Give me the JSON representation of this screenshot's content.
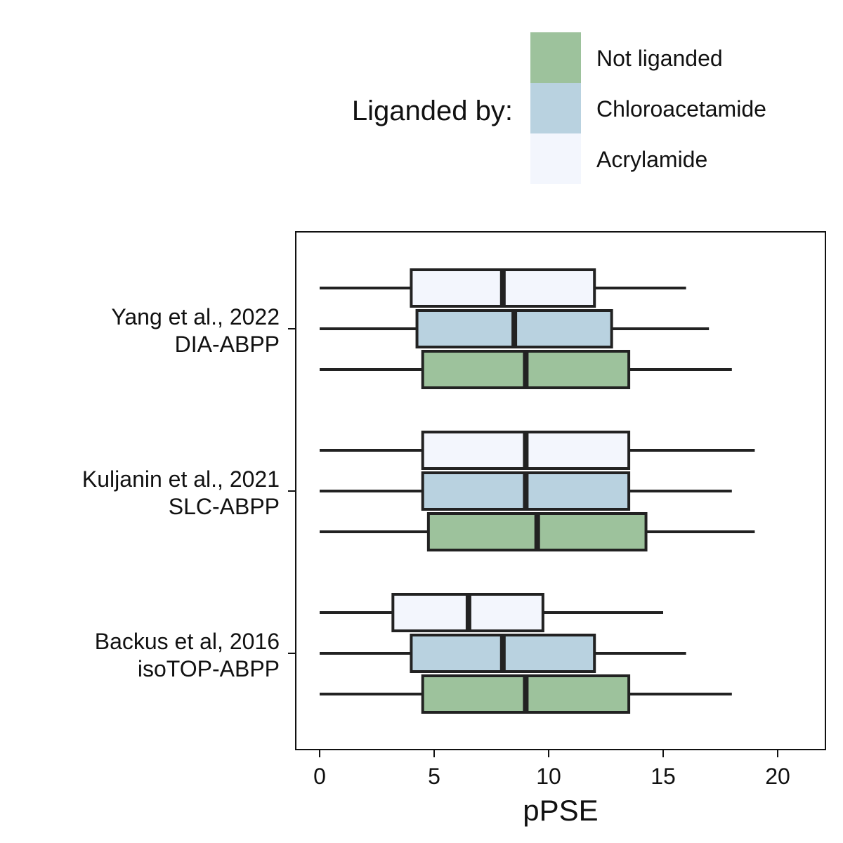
{
  "chart_data": {
    "type": "box",
    "orientation": "horizontal",
    "xlabel": "pPSE",
    "xlim": [
      -1,
      22
    ],
    "xticks": [
      0,
      5,
      10,
      15,
      20
    ],
    "grid": false,
    "legend": {
      "title": "Liganded by:",
      "position": "top",
      "entries": [
        {
          "label": "Not liganded",
          "color": "#9dc29c"
        },
        {
          "label": "Chloroacetamide",
          "color": "#b9d2e0"
        },
        {
          "label": "Acrylamide",
          "color": "#f3f6fd"
        }
      ]
    },
    "categories": [
      {
        "line1": "Yang et al., 2022",
        "line2": "DIA-ABPP"
      },
      {
        "line1": "Kuljanin et al., 2021",
        "line2": "SLC-ABPP"
      },
      {
        "line1": "Backus et al, 2016",
        "line2": "isoTOP-ABPP"
      }
    ],
    "series": [
      {
        "name": "Acrylamide",
        "color": "#f3f6fd",
        "boxes": [
          {
            "min": 0,
            "q1": 4,
            "median": 8,
            "q3": 12,
            "max": 16
          },
          {
            "min": 0,
            "q1": 4.5,
            "median": 9,
            "q3": 13.5,
            "max": 19
          },
          {
            "min": 0,
            "q1": 3.2,
            "median": 6.5,
            "q3": 9.75,
            "max": 15
          }
        ]
      },
      {
        "name": "Chloroacetamide",
        "color": "#b9d2e0",
        "boxes": [
          {
            "min": 0,
            "q1": 4.25,
            "median": 8.5,
            "q3": 12.75,
            "max": 17
          },
          {
            "min": 0,
            "q1": 4.5,
            "median": 9,
            "q3": 13.5,
            "max": 18
          },
          {
            "min": 0,
            "q1": 4,
            "median": 8,
            "q3": 12,
            "max": 16
          }
        ]
      },
      {
        "name": "Not liganded",
        "color": "#9dc29c",
        "boxes": [
          {
            "min": 0,
            "q1": 4.5,
            "median": 9,
            "q3": 13.5,
            "max": 18
          },
          {
            "min": 0,
            "q1": 4.75,
            "median": 9.5,
            "q3": 14.25,
            "max": 19
          },
          {
            "min": 0,
            "q1": 4.5,
            "median": 9,
            "q3": 13.5,
            "max": 18
          }
        ]
      }
    ]
  }
}
